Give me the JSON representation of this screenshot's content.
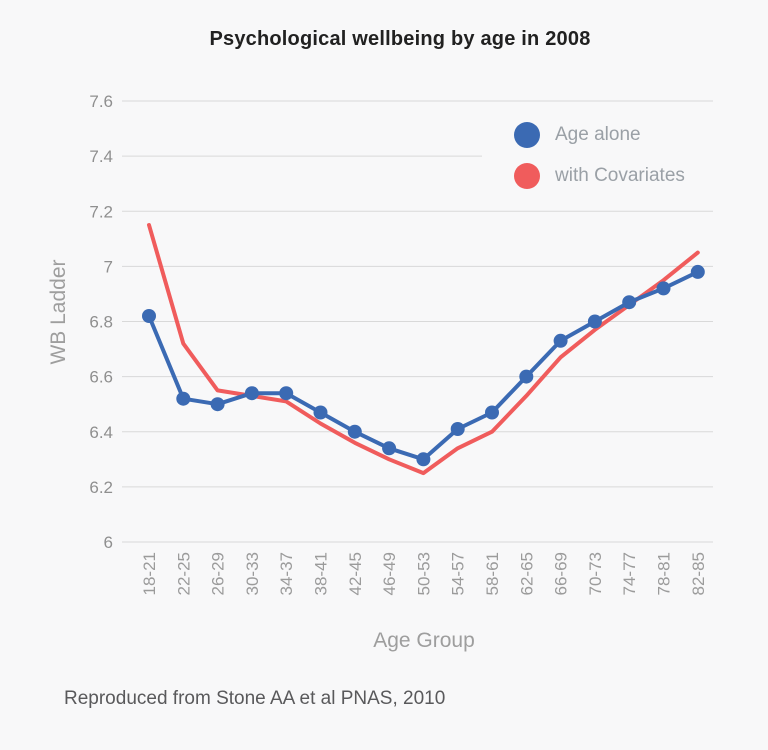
{
  "page": {
    "background": "#f8f8f9",
    "caption": "Reproduced from Stone AA et al PNAS, 2010"
  },
  "chart_data": {
    "type": "line",
    "title": "Psychological wellbeing by age in 2008",
    "xlabel": "Age Group",
    "ylabel": "WB Ladder",
    "ylim": [
      6,
      7.6
    ],
    "yticks": [
      7.6,
      7.4,
      7.2,
      7,
      6.8,
      6.6,
      6.4,
      6.2,
      6
    ],
    "grid": true,
    "legend_position": "top-right",
    "categories": [
      "18-21",
      "22-25",
      "26-29",
      "30-33",
      "34-37",
      "38-41",
      "42-45",
      "46-49",
      "50-53",
      "54-57",
      "58-61",
      "62-65",
      "66-69",
      "70-73",
      "74-77",
      "78-81",
      "82-85"
    ],
    "series": [
      {
        "name": "Age alone",
        "color": "#3b6ab3",
        "marker": "circle",
        "values": [
          6.82,
          6.52,
          6.5,
          6.54,
          6.54,
          6.47,
          6.4,
          6.34,
          6.3,
          6.41,
          6.47,
          6.6,
          6.73,
          6.8,
          6.87,
          6.92,
          6.98
        ]
      },
      {
        "name": "with Covariates",
        "color": "#f05c5c",
        "marker": "none",
        "values": [
          7.15,
          6.72,
          6.55,
          6.53,
          6.51,
          6.43,
          6.36,
          6.3,
          6.25,
          6.34,
          6.4,
          6.53,
          6.67,
          6.77,
          6.86,
          6.95,
          7.05
        ]
      }
    ],
    "colors": {
      "gridline": "#d9d9d9",
      "ytick": "#8f8f8f",
      "xtick": "#9b9b9b",
      "title": "#212121",
      "axis_title": "#9e9e9e",
      "legend_text": "#9aa0a6",
      "caption": "#59595b"
    }
  }
}
